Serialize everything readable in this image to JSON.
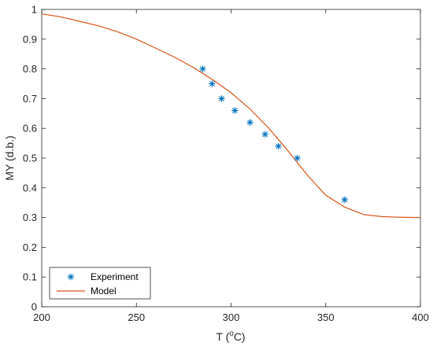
{
  "chart_data": {
    "type": "line",
    "title": "",
    "xlabel_main": "T (",
    "xlabel_sup": "o",
    "xlabel_tail": "C)",
    "ylabel": "MY (d.b.)",
    "xlim": [
      200,
      400
    ],
    "ylim": [
      0,
      1
    ],
    "xticks": [
      200,
      250,
      300,
      350,
      400
    ],
    "xtick_labels": [
      "200",
      "250",
      "300",
      "350",
      "400"
    ],
    "yticks": [
      0,
      0.1,
      0.2,
      0.3,
      0.4,
      0.5,
      0.6,
      0.7,
      0.8,
      0.9,
      1
    ],
    "ytick_labels": [
      "0",
      "0.1",
      "0.2",
      "0.3",
      "0.4",
      "0.5",
      "0.6",
      "0.7",
      "0.8",
      "0.9",
      "1"
    ],
    "grid": false,
    "legend_position": "bottom-left",
    "series": [
      {
        "name": "Experiment",
        "kind": "scatter",
        "marker": "asterisk",
        "color": "#0072BD",
        "x": [
          285,
          290,
          295,
          302,
          310,
          318,
          325,
          335,
          360
        ],
        "y": [
          0.8,
          0.75,
          0.7,
          0.66,
          0.62,
          0.58,
          0.54,
          0.5,
          0.36
        ]
      },
      {
        "name": "Model",
        "kind": "line",
        "color": "#D95319",
        "x": [
          200,
          210,
          220,
          230,
          240,
          250,
          260,
          270,
          280,
          290,
          300,
          310,
          320,
          330,
          340,
          350,
          360,
          370,
          380,
          390,
          400
        ],
        "y": [
          0.985,
          0.975,
          0.96,
          0.945,
          0.925,
          0.9,
          0.87,
          0.84,
          0.805,
          0.765,
          0.72,
          0.665,
          0.6,
          0.525,
          0.445,
          0.375,
          0.335,
          0.31,
          0.303,
          0.301,
          0.3
        ]
      }
    ]
  }
}
